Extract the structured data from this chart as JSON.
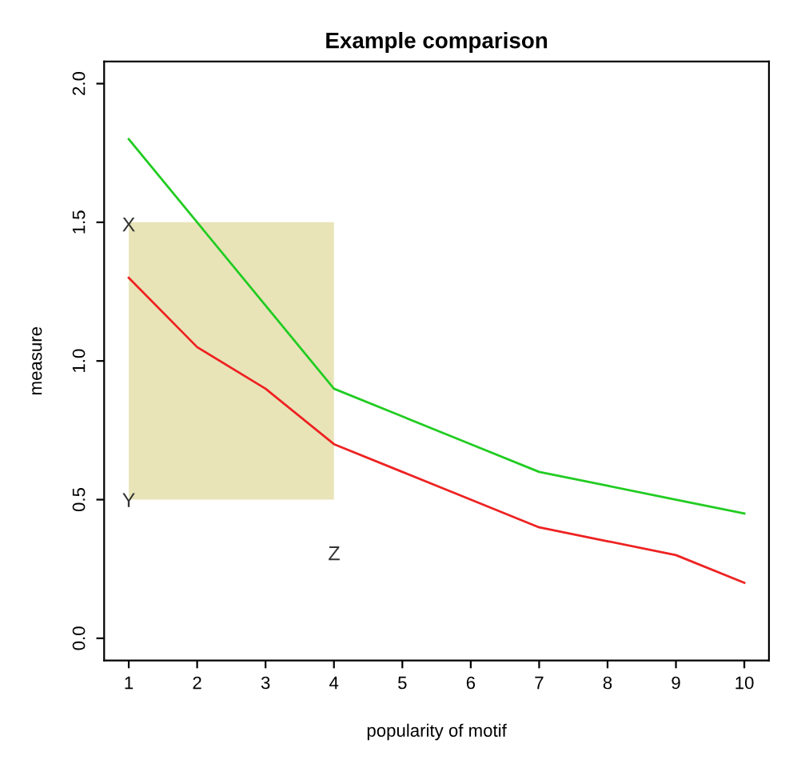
{
  "chart_data": {
    "type": "line",
    "title": "Example comparison",
    "xlabel": "popularity of motif",
    "ylabel": "measure",
    "xlim": [
      0.64,
      10.36
    ],
    "ylim": [
      -0.08,
      2.08
    ],
    "xticks": [
      1,
      2,
      3,
      4,
      5,
      6,
      7,
      8,
      9,
      10
    ],
    "yticks": [
      {
        "value": 0,
        "label": "0.0"
      },
      {
        "value": 0.5,
        "label": "0.5"
      },
      {
        "value": 1,
        "label": "1.0"
      },
      {
        "value": 1.5,
        "label": "1.5"
      },
      {
        "value": 2,
        "label": "2.0"
      }
    ],
    "series": [
      {
        "type": "area",
        "color": "#e8e4b8",
        "x": [
          1,
          4
        ],
        "values": [
          null,
          null
        ],
        "lower": [
          0.5,
          0.5
        ],
        "upper": [
          1.5,
          1.5
        ]
      },
      {
        "color": "#22cc22",
        "x": [
          1,
          2,
          3,
          4,
          5,
          6,
          7,
          8,
          9,
          10
        ],
        "values": [
          1.8,
          1.5,
          1.2,
          0.9,
          0.8,
          0.7,
          0.6,
          0.55,
          0.5,
          0.45
        ]
      },
      {
        "color": "#ee2222",
        "x": [
          1,
          2,
          3,
          4,
          5,
          6,
          7,
          8,
          9,
          10
        ],
        "values": [
          1.3,
          1.05,
          0.9,
          0.7,
          0.6,
          0.5,
          0.4,
          0.35,
          0.3,
          0.2
        ]
      }
    ],
    "annotations": [
      "X",
      "Y",
      "Z"
    ],
    "grid": false,
    "legend": false
  }
}
